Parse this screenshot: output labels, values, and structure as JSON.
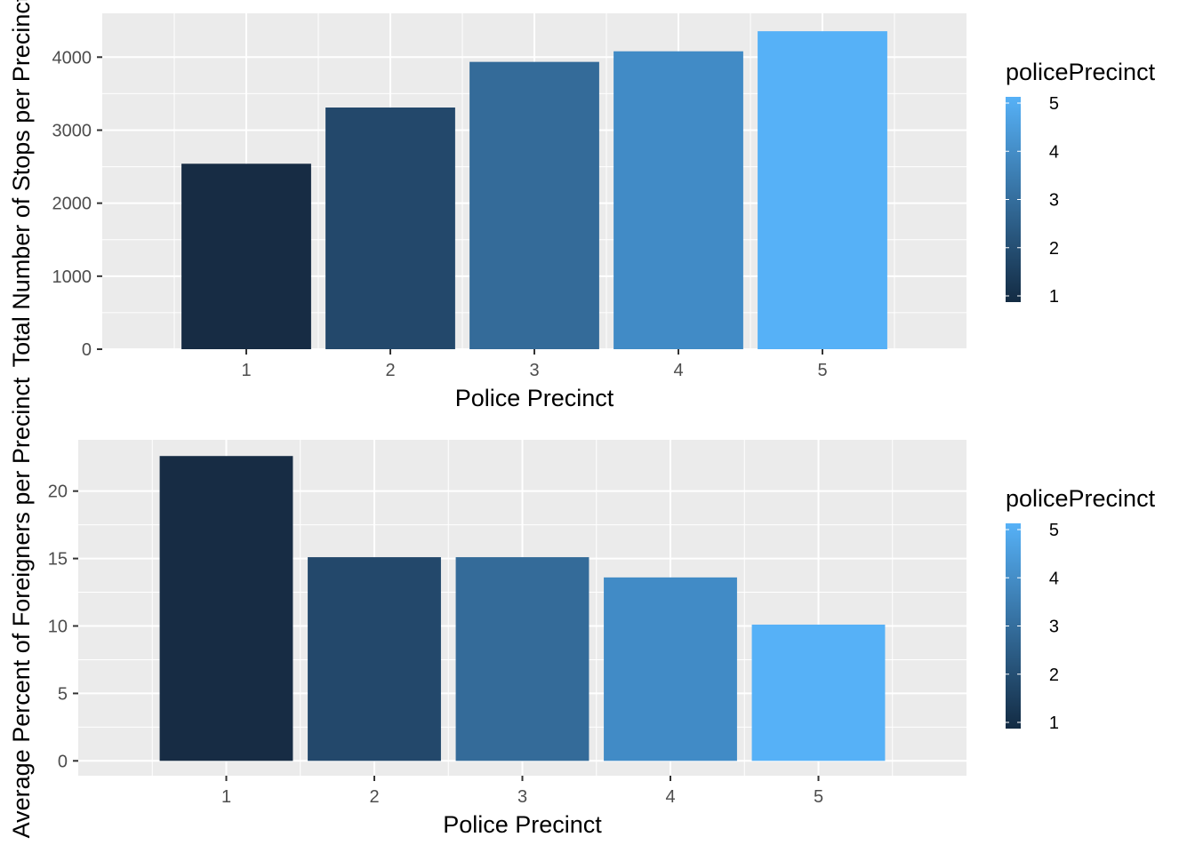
{
  "colors": {
    "panel_bg": "#EBEBEB",
    "grid_major": "#FFFFFF",
    "tick": "#333333",
    "gradient_low": "#132B43",
    "gradient_high": "#56B1F7",
    "bar_fills": [
      "#172C44",
      "#23486B",
      "#346B99",
      "#418BC6",
      "#56B1F7"
    ]
  },
  "chart_data": [
    {
      "type": "bar",
      "categories": [
        "1",
        "2",
        "3",
        "4",
        "5"
      ],
      "values": [
        2540,
        3310,
        3935,
        4080,
        4355
      ],
      "xlabel": "Police Precinct",
      "ylabel": "Total Number of Stops per Precinct",
      "ylim": [
        0,
        4600
      ],
      "yticks": [
        0,
        1000,
        2000,
        3000,
        4000
      ],
      "ytick_labels": [
        "0",
        "1000",
        "2000",
        "3000",
        "4000"
      ],
      "grid": true,
      "legend": {
        "title": "policePrecinct",
        "position": "right",
        "type": "colorbar",
        "labels": [
          "5",
          "4",
          "3",
          "2",
          "1"
        ]
      }
    },
    {
      "type": "bar",
      "categories": [
        "1",
        "2",
        "3",
        "4",
        "5"
      ],
      "values": [
        22.6,
        15.1,
        15.1,
        13.6,
        10.1
      ],
      "xlabel": "Police Precinct",
      "ylabel": "Average Percent of Foreigners per Precinct",
      "ylim": [
        -1.1,
        23.8
      ],
      "yticks": [
        0,
        5,
        10,
        15,
        20
      ],
      "ytick_labels": [
        "0",
        "5",
        "10",
        "15",
        "20"
      ],
      "grid": true,
      "legend": {
        "title": "policePrecinct",
        "position": "right",
        "type": "colorbar",
        "labels": [
          "5",
          "4",
          "3",
          "2",
          "1"
        ]
      }
    }
  ]
}
